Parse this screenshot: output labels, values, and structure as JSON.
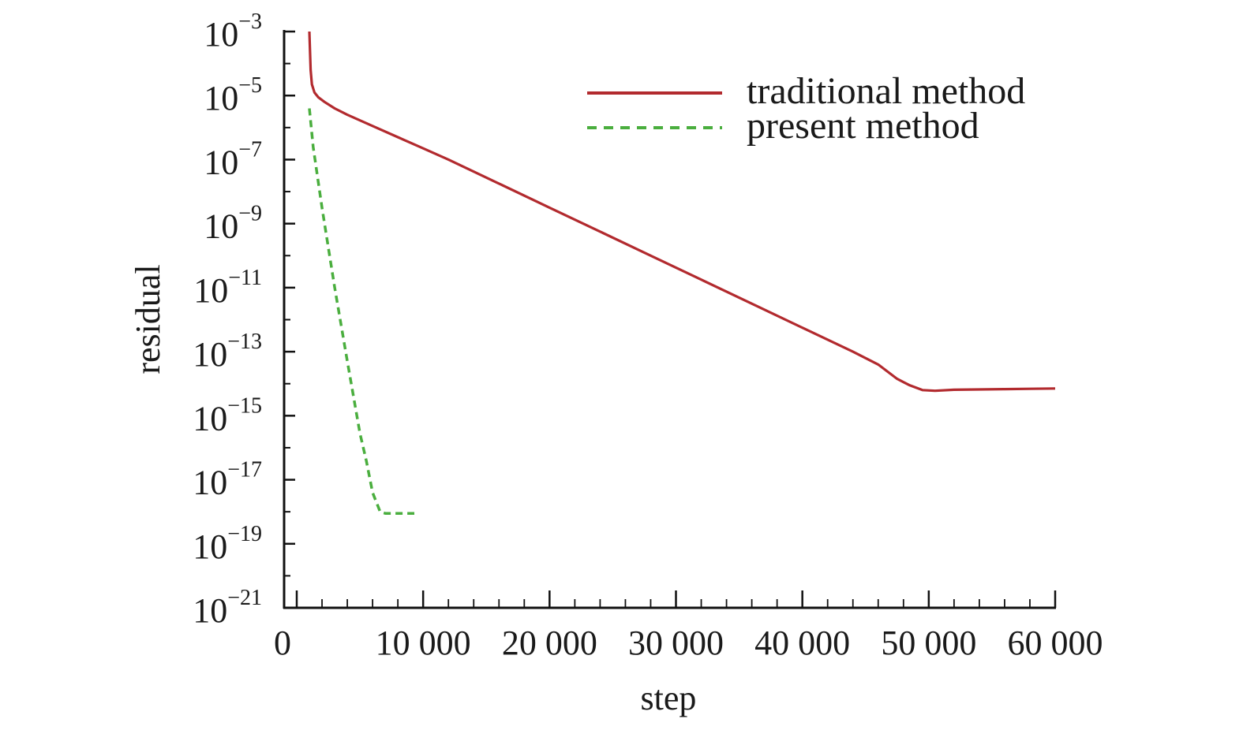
{
  "chart_data": {
    "type": "line",
    "title": "",
    "xlabel": "step",
    "ylabel": "residual",
    "xlim": [
      0,
      60000
    ],
    "ylim_exponent": [
      -21,
      -3
    ],
    "yscale": "log",
    "x_ticks": [
      {
        "value": 0,
        "label": "0"
      },
      {
        "value": 10000,
        "label": "10 000"
      },
      {
        "value": 20000,
        "label": "20 000"
      },
      {
        "value": 30000,
        "label": "30 000"
      },
      {
        "value": 40000,
        "label": "40 000"
      },
      {
        "value": 50000,
        "label": "50 000"
      },
      {
        "value": 60000,
        "label": "60 000"
      }
    ],
    "y_ticks": [
      {
        "exp": -3,
        "base": "10",
        "sup": "−3"
      },
      {
        "exp": -5,
        "base": "10",
        "sup": "−5"
      },
      {
        "exp": -7,
        "base": "10",
        "sup": "−7"
      },
      {
        "exp": -9,
        "base": "10",
        "sup": "−9"
      },
      {
        "exp": -11,
        "base": "10",
        "sup": "−11"
      },
      {
        "exp": -13,
        "base": "10",
        "sup": "−13"
      },
      {
        "exp": -15,
        "base": "10",
        "sup": "−15"
      },
      {
        "exp": -17,
        "base": "10",
        "sup": "−17"
      },
      {
        "exp": -19,
        "base": "10",
        "sup": "−19"
      },
      {
        "exp": -21,
        "base": "10",
        "sup": "−21"
      }
    ],
    "grid": false,
    "legend_position": "top-right",
    "series": [
      {
        "name": "traditional method",
        "color": "#b22a2e",
        "dash": "solid",
        "points": [
          [
            1000,
            -3.0
          ],
          [
            1050,
            -3.6
          ],
          [
            1100,
            -4.2
          ],
          [
            1200,
            -4.65
          ],
          [
            1400,
            -4.9
          ],
          [
            1700,
            -5.05
          ],
          [
            2200,
            -5.2
          ],
          [
            3000,
            -5.4
          ],
          [
            4000,
            -5.6
          ],
          [
            6000,
            -5.95
          ],
          [
            8000,
            -6.3
          ],
          [
            10000,
            -6.65
          ],
          [
            12000,
            -7.0
          ],
          [
            16000,
            -7.75
          ],
          [
            20000,
            -8.5
          ],
          [
            24000,
            -9.25
          ],
          [
            28000,
            -10.0
          ],
          [
            32000,
            -10.75
          ],
          [
            36000,
            -11.5
          ],
          [
            40000,
            -12.25
          ],
          [
            44000,
            -13.0
          ],
          [
            46000,
            -13.4
          ],
          [
            47500,
            -13.85
          ],
          [
            48500,
            -14.05
          ],
          [
            49500,
            -14.2
          ],
          [
            50500,
            -14.22
          ],
          [
            52000,
            -14.19
          ],
          [
            54000,
            -14.18
          ],
          [
            56000,
            -14.17
          ],
          [
            58000,
            -14.16
          ],
          [
            60000,
            -14.15
          ]
        ]
      },
      {
        "name": "present method",
        "color": "#4aae3e",
        "dash": "dashed",
        "points": [
          [
            1000,
            -5.4
          ],
          [
            1300,
            -6.6
          ],
          [
            2000,
            -8.5
          ],
          [
            3000,
            -11.0
          ],
          [
            4000,
            -13.3
          ],
          [
            5000,
            -15.55
          ],
          [
            5500,
            -16.4
          ],
          [
            6000,
            -17.4
          ],
          [
            6600,
            -18.0
          ],
          [
            7000,
            -18.05
          ],
          [
            8000,
            -18.05
          ],
          [
            9300,
            -18.05
          ]
        ]
      }
    ]
  }
}
